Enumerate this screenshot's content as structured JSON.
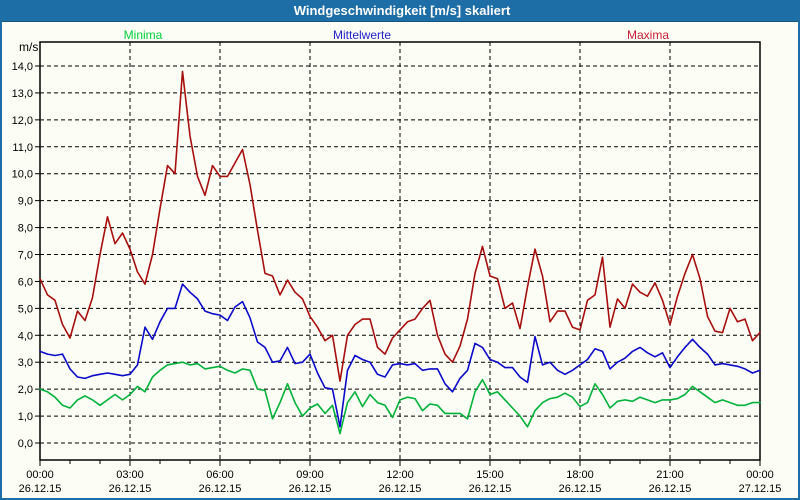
{
  "window": {
    "title": "Windgeschwindigkeit [m/s] skaliert"
  },
  "legend": {
    "items": [
      {
        "label": "Minima",
        "color": "#00cf3a",
        "x_center": 143
      },
      {
        "label": "Mittelwerte",
        "color": "#2222cc",
        "x_center": 362
      },
      {
        "label": "Maxima",
        "color": "#cc2036",
        "x_center": 648
      }
    ]
  },
  "axis": {
    "unit_label": "m/s",
    "y_tick_labels": [
      "0,0",
      "1,0",
      "2,0",
      "3,0",
      "4,0",
      "5,0",
      "6,0",
      "7,0",
      "8,0",
      "9,0",
      "10,0",
      "11,0",
      "12,0",
      "13,0",
      "14,0"
    ],
    "x_ticks": [
      {
        "time": "00:00",
        "date": "26.12.15"
      },
      {
        "time": "03:00",
        "date": "26.12.15"
      },
      {
        "time": "06:00",
        "date": "26.12.15"
      },
      {
        "time": "09:00",
        "date": "26.12.15"
      },
      {
        "time": "12:00",
        "date": "26.12.15"
      },
      {
        "time": "15:00",
        "date": "26.12.15"
      },
      {
        "time": "18:00",
        "date": "26.12.15"
      },
      {
        "time": "21:00",
        "date": "26.12.15"
      },
      {
        "time": "00:00",
        "date": "27.12.15"
      }
    ]
  },
  "chart_data": {
    "type": "line",
    "title": "Windgeschwindigkeit [m/s] skaliert",
    "ylabel": "m/s",
    "ylim": [
      0,
      14
    ],
    "y_major_step": 1.0,
    "grid": "dashed-black",
    "x_axis": {
      "unit": "hours",
      "start": 0,
      "end": 24,
      "step": 0.25,
      "major_tick_hours": 3,
      "minor_tick_hours": 1,
      "start_label": "00:00 26.12.15",
      "end_label": "00:00 27.12.15"
    },
    "series": [
      {
        "name": "Minima",
        "color": "#00b23a",
        "values": [
          2.0,
          1.9,
          1.7,
          1.4,
          1.3,
          1.6,
          1.75,
          1.6,
          1.4,
          1.6,
          1.8,
          1.6,
          1.8,
          2.1,
          1.9,
          2.45,
          2.7,
          2.9,
          2.95,
          3.0,
          2.9,
          2.95,
          2.75,
          2.8,
          2.85,
          2.7,
          2.6,
          2.75,
          2.7,
          2.0,
          1.95,
          0.9,
          1.5,
          2.2,
          1.5,
          1.0,
          1.3,
          1.45,
          1.1,
          1.4,
          0.35,
          1.5,
          1.9,
          1.35,
          1.8,
          1.5,
          1.4,
          0.95,
          1.6,
          1.7,
          1.65,
          1.2,
          1.45,
          1.4,
          1.1,
          1.1,
          1.1,
          0.9,
          1.9,
          2.35,
          1.8,
          1.9,
          1.6,
          1.3,
          1.0,
          0.6,
          1.2,
          1.5,
          1.65,
          1.7,
          1.85,
          1.7,
          1.35,
          1.5,
          2.2,
          1.8,
          1.3,
          1.55,
          1.6,
          1.55,
          1.7,
          1.6,
          1.5,
          1.6,
          1.6,
          1.65,
          1.8,
          2.1,
          1.9,
          1.7,
          1.5,
          1.6,
          1.5,
          1.4,
          1.4,
          1.5,
          1.5
        ]
      },
      {
        "name": "Mittelwerte",
        "color": "#0a0ac8",
        "values": [
          3.4,
          3.3,
          3.25,
          3.3,
          2.75,
          2.45,
          2.4,
          2.5,
          2.55,
          2.6,
          2.55,
          2.5,
          2.55,
          2.9,
          4.3,
          3.85,
          4.5,
          5.0,
          5.0,
          5.9,
          5.6,
          5.35,
          4.9,
          4.8,
          4.75,
          4.55,
          5.05,
          5.25,
          4.65,
          3.75,
          3.55,
          3.0,
          3.05,
          3.55,
          2.95,
          3.0,
          3.3,
          2.6,
          2.05,
          2.0,
          0.6,
          2.7,
          3.25,
          3.1,
          3.0,
          2.55,
          2.45,
          2.9,
          2.95,
          2.9,
          2.95,
          2.7,
          2.75,
          2.75,
          2.2,
          1.9,
          2.4,
          2.7,
          3.7,
          3.55,
          3.1,
          3.0,
          2.8,
          2.8,
          2.45,
          2.25,
          3.95,
          2.9,
          3.0,
          2.7,
          2.55,
          2.7,
          2.9,
          3.1,
          3.5,
          3.4,
          2.75,
          3.0,
          3.15,
          3.4,
          3.55,
          3.35,
          3.2,
          3.35,
          2.8,
          3.2,
          3.55,
          3.85,
          3.55,
          3.3,
          2.9,
          2.95,
          2.9,
          2.85,
          2.75,
          2.6,
          2.7
        ]
      },
      {
        "name": "Maxima",
        "color": "#a80f0f",
        "values": [
          6.1,
          5.5,
          5.3,
          4.4,
          3.9,
          4.9,
          4.55,
          5.4,
          7.0,
          8.4,
          7.4,
          7.8,
          7.2,
          6.35,
          5.9,
          7.0,
          8.7,
          10.3,
          10.0,
          13.8,
          11.4,
          9.9,
          9.2,
          10.3,
          9.9,
          9.9,
          10.4,
          10.9,
          9.6,
          7.9,
          6.3,
          6.2,
          5.5,
          6.05,
          5.6,
          5.35,
          4.7,
          4.3,
          3.8,
          4.0,
          2.3,
          4.0,
          4.4,
          4.6,
          4.6,
          3.55,
          3.3,
          3.9,
          4.2,
          4.5,
          4.6,
          5.0,
          5.3,
          4.0,
          3.3,
          3.0,
          3.6,
          4.6,
          6.3,
          7.3,
          6.2,
          6.1,
          5.0,
          5.2,
          4.25,
          5.8,
          7.2,
          6.2,
          4.5,
          4.9,
          4.9,
          4.3,
          4.2,
          5.3,
          5.5,
          6.9,
          4.3,
          5.35,
          5.0,
          5.9,
          5.6,
          5.45,
          5.95,
          5.3,
          4.4,
          5.45,
          6.3,
          7.0,
          6.1,
          4.7,
          4.15,
          4.1,
          5.0,
          4.5,
          4.6,
          3.8,
          4.1
        ]
      }
    ]
  }
}
